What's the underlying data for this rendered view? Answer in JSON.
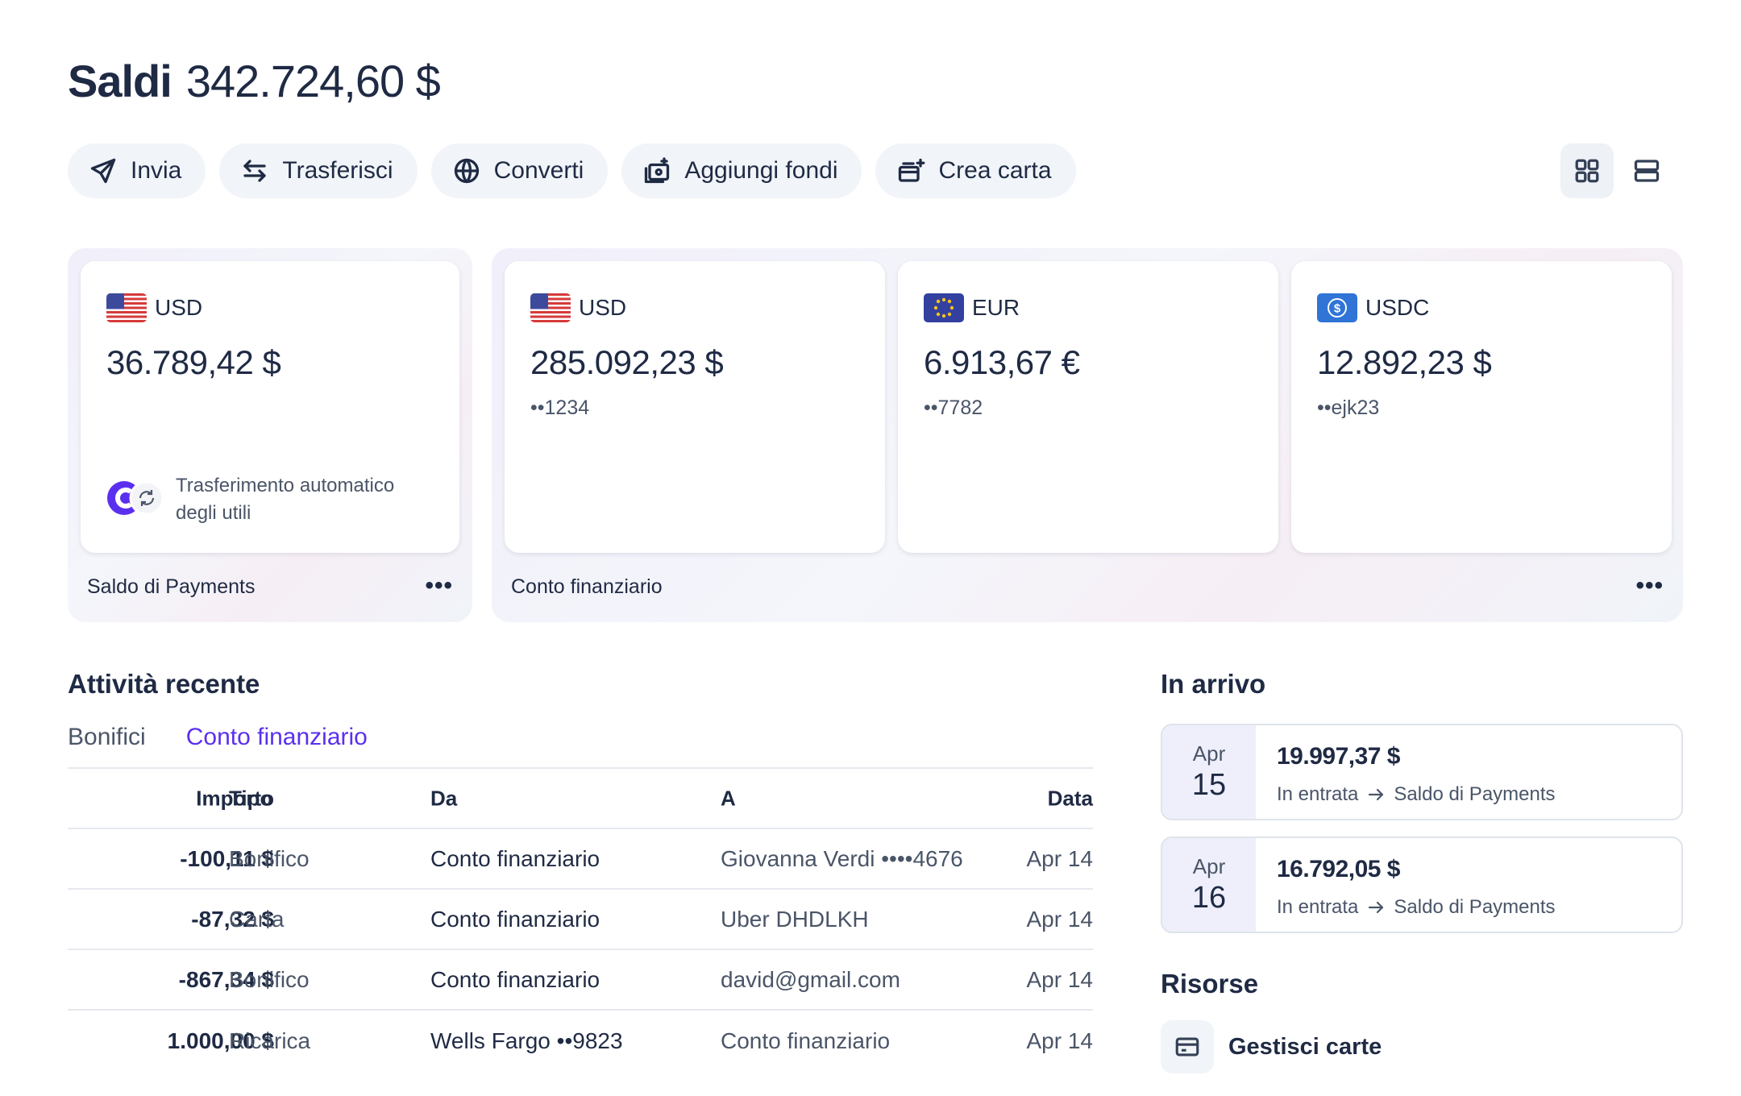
{
  "header": {
    "title": "Saldi",
    "total": "342.724,60 $"
  },
  "actions": [
    {
      "label": "Invia",
      "icon": "send-icon"
    },
    {
      "label": "Trasferisci",
      "icon": "transfer-icon"
    },
    {
      "label": "Converti",
      "icon": "globe-icon"
    },
    {
      "label": "Aggiungi fondi",
      "icon": "add-funds-icon"
    },
    {
      "label": "Crea carta",
      "icon": "create-card-icon"
    }
  ],
  "view_toggle": {
    "active": "grid",
    "icons": [
      "grid-view-icon",
      "list-view-icon"
    ]
  },
  "payments_balance": {
    "card": {
      "currency": "USD",
      "amount": "36.789,42 $",
      "auto_transfer": "Trasferimento automatico degli utili"
    },
    "footer": "Saldo di Payments",
    "more": "•••"
  },
  "financial_account": {
    "cards": [
      {
        "currency": "USD",
        "amount": "285.092,23 $",
        "mask": "••1234",
        "flag": "us-flag-icon"
      },
      {
        "currency": "EUR",
        "amount": "6.913,67 €",
        "mask": "••7782",
        "flag": "eu-flag-icon"
      },
      {
        "currency": "USDC",
        "amount": "12.892,23 $",
        "mask": "••ejk23",
        "flag": "usdc-icon"
      }
    ],
    "footer": "Conto finanziario",
    "more": "•••"
  },
  "recent_activity": {
    "title": "Attività recente",
    "tabs": [
      {
        "label": "Bonifici",
        "active": false
      },
      {
        "label": "Conto finanziario",
        "active": true
      }
    ],
    "columns": {
      "amount": "Importo",
      "type": "Tipo",
      "from": "Da",
      "to": "A",
      "date": "Data"
    },
    "rows": [
      {
        "amount": "-100,11 $",
        "type": "Bonifico",
        "from": "Conto finanziario",
        "to": "Giovanna Verdi ••••4676",
        "date": "Apr 14"
      },
      {
        "amount": "-87,32 $",
        "type": "Carta",
        "from": "Conto finanziario",
        "to": "Uber DHDLKH",
        "date": "Apr 14"
      },
      {
        "amount": "-867,34 $",
        "type": "Bonifico",
        "from": "Conto finanziario",
        "to": "david@gmail.com",
        "date": "Apr 14"
      },
      {
        "amount": "1.000,00 $",
        "type": "Ricarica",
        "from": "Wells Fargo ••9823",
        "to": "Conto finanziario",
        "date": "Apr 14"
      }
    ]
  },
  "incoming": {
    "title": "In arrivo",
    "items": [
      {
        "month": "Apr",
        "day": "15",
        "amount": "19.997,37 $",
        "status": "In entrata",
        "destination": "Saldo di Payments"
      },
      {
        "month": "Apr",
        "day": "16",
        "amount": "16.792,05 $",
        "status": "In entrata",
        "destination": "Saldo di Payments"
      }
    ]
  },
  "resources": {
    "title": "Risorse",
    "items": [
      {
        "label": "Gestisci carte",
        "icon": "card-icon"
      }
    ]
  },
  "colors": {
    "text": "#1f2a44",
    "muted": "#4a5568",
    "accent": "#5b2ff0",
    "button_bg": "#f1f4f8"
  }
}
